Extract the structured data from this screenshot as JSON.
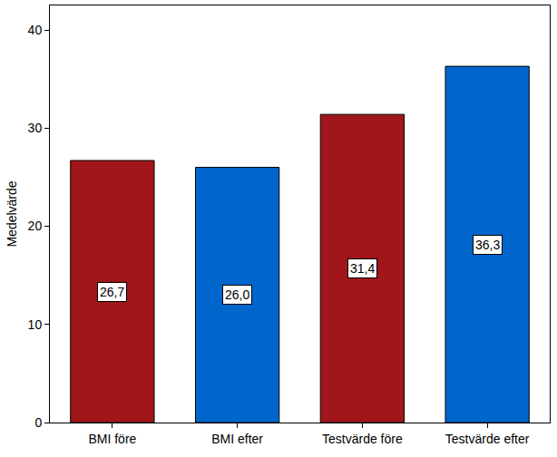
{
  "chart_data": {
    "type": "bar",
    "y_label": "Medelvärde",
    "categories": [
      "BMI före",
      "BMI efter",
      "Testvärde före",
      "Testvärde efter"
    ],
    "values": [
      26.7,
      26.0,
      31.4,
      36.3
    ],
    "value_labels": [
      "26,7",
      "26,0",
      "31,4",
      "36,3"
    ],
    "colors": [
      "#a0161a",
      "#0066cc",
      "#a0161a",
      "#0066cc"
    ],
    "ylim": [
      0,
      42.5
    ],
    "yticks": [
      0,
      10,
      20,
      30,
      40
    ],
    "grid": false,
    "data_labels": true
  }
}
